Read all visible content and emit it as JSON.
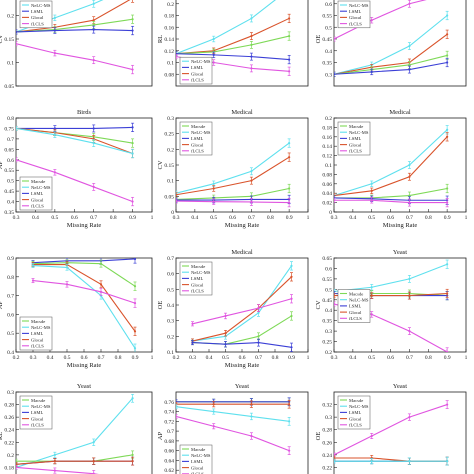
{
  "colors": {
    "Macsde": "#7ed957",
    "NeLC-MS": "#5ee0ee",
    "LSML": "#3b3fd6",
    "Glocal": "#d9532b",
    "fLCLS": "#e055e0"
  },
  "chart_data": [
    {
      "type": "line",
      "title": "",
      "xlabel": "",
      "ylabel": "CV",
      "xlim": [
        0.3,
        1
      ],
      "ylim": [
        0.05,
        0.25
      ],
      "xticks": [],
      "yticks": [
        "0.05",
        "0.1",
        "0.15",
        "0.2",
        "0.25"
      ],
      "x": [
        0.3,
        0.5,
        0.7,
        0.9
      ],
      "series": [
        {
          "key": "NeLC-MS",
          "values": [
            0.165,
            0.195,
            0.225,
            0.262
          ]
        },
        {
          "key": "Glocal",
          "values": [
            0.165,
            0.175,
            0.19,
            0.237
          ]
        },
        {
          "key": "Macsde",
          "values": [
            0.165,
            0.17,
            0.18,
            0.192
          ]
        },
        {
          "key": "LSML",
          "values": [
            0.165,
            0.168,
            0.17,
            0.168
          ]
        },
        {
          "key": "fLCLS",
          "values": [
            0.14,
            0.12,
            0.105,
            0.085
          ]
        }
      ],
      "legend": [
        "NeLC-MS",
        "LSML",
        "Glocal",
        "fLCLS"
      ],
      "legend_pos": "top-left"
    },
    {
      "type": "line",
      "title": "",
      "xlabel": "",
      "ylabel": "RL",
      "xlim": [
        0.3,
        1
      ],
      "ylim": [
        0.06,
        0.22
      ],
      "xticks": [],
      "yticks": [
        "0.08",
        "0.1",
        "0.12",
        "0.14",
        "0.16",
        "0.18",
        "0.2",
        "0.22"
      ],
      "x": [
        0.3,
        0.5,
        0.7,
        0.9
      ],
      "series": [
        {
          "key": "NeLC-MS",
          "values": [
            0.115,
            0.14,
            0.175,
            0.225
          ]
        },
        {
          "key": "Glocal",
          "values": [
            0.115,
            0.12,
            0.145,
            0.175
          ]
        },
        {
          "key": "Macsde",
          "values": [
            0.115,
            0.118,
            0.13,
            0.145
          ]
        },
        {
          "key": "LSML",
          "values": [
            0.115,
            0.113,
            0.11,
            0.105
          ]
        },
        {
          "key": "fLCLS",
          "values": [
            0.11,
            0.1,
            0.09,
            0.085
          ]
        }
      ],
      "legend": [
        "NeLC-MS",
        "LSML",
        "Glocal",
        "fLCLS"
      ],
      "legend_pos": "bottom-left"
    },
    {
      "type": "line",
      "title": "",
      "xlabel": "",
      "ylabel": "OE",
      "xlim": [
        0.3,
        1
      ],
      "ylim": [
        0.25,
        0.65
      ],
      "xticks": [],
      "yticks": [
        "0.3",
        "0.35",
        "0.4",
        "0.45",
        "0.5",
        "0.55",
        "0.6"
      ],
      "x": [
        0.3,
        0.5,
        0.7,
        0.9
      ],
      "series": [
        {
          "key": "fLCLS",
          "values": [
            0.45,
            0.53,
            0.6,
            0.64
          ]
        },
        {
          "key": "NeLC-MS",
          "values": [
            0.3,
            0.34,
            0.42,
            0.55
          ]
        },
        {
          "key": "Glocal",
          "values": [
            0.3,
            0.33,
            0.35,
            0.47
          ]
        },
        {
          "key": "Macsde",
          "values": [
            0.3,
            0.32,
            0.34,
            0.38
          ]
        },
        {
          "key": "LSML",
          "values": [
            0.3,
            0.31,
            0.32,
            0.35
          ]
        }
      ],
      "legend": [
        "NeLC-MS",
        "LSML",
        "Glocal",
        "fLCLS"
      ],
      "legend_pos": "top-left"
    },
    {
      "type": "line",
      "title": "Birds",
      "xlabel": "Missing Rate",
      "ylabel": "AP",
      "xlim": [
        0.3,
        1
      ],
      "ylim": [
        0.35,
        0.8
      ],
      "xticks": [
        "0.3",
        "0.4",
        "0.5",
        "0.6",
        "0.7",
        "0.8",
        "0.9",
        "1"
      ],
      "yticks": [
        "0.35",
        "0.4",
        "0.45",
        "0.5",
        "0.55",
        "0.6",
        "0.65",
        "0.7",
        "0.75",
        "0.8"
      ],
      "x": [
        0.3,
        0.5,
        0.7,
        0.9
      ],
      "series": [
        {
          "key": "LSML",
          "values": [
            0.75,
            0.75,
            0.75,
            0.755
          ]
        },
        {
          "key": "Macsde",
          "values": [
            0.75,
            0.73,
            0.71,
            0.68
          ]
        },
        {
          "key": "Glocal",
          "values": [
            0.75,
            0.73,
            0.7,
            0.63
          ]
        },
        {
          "key": "NeLC-MS",
          "values": [
            0.75,
            0.72,
            0.68,
            0.63
          ]
        },
        {
          "key": "fLCLS",
          "values": [
            0.6,
            0.54,
            0.47,
            0.4
          ]
        }
      ],
      "legend": [
        "Macsde",
        "NeLC-MS",
        "LSML",
        "Glocal",
        "fLCLS"
      ],
      "legend_pos": "bottom-left"
    },
    {
      "type": "line",
      "title": "Medical",
      "xlabel": "Missing Rate",
      "ylabel": "CV",
      "xlim": [
        0.3,
        1
      ],
      "ylim": [
        0,
        0.3
      ],
      "xticks": [
        "0.3",
        "0.4",
        "0.5",
        "0.6",
        "0.7",
        "0.8",
        "0.9",
        "1"
      ],
      "yticks": [
        "0",
        "0.05",
        "0.1",
        "0.15",
        "0.2",
        "0.25",
        "0.3"
      ],
      "x": [
        0.3,
        0.5,
        0.7,
        0.9
      ],
      "series": [
        {
          "key": "NeLC-MS",
          "values": [
            0.06,
            0.09,
            0.13,
            0.22
          ]
        },
        {
          "key": "Glocal",
          "values": [
            0.055,
            0.075,
            0.1,
            0.175
          ]
        },
        {
          "key": "Macsde",
          "values": [
            0.04,
            0.045,
            0.05,
            0.075
          ]
        },
        {
          "key": "LSML",
          "values": [
            0.038,
            0.038,
            0.04,
            0.04
          ]
        },
        {
          "key": "fLCLS",
          "values": [
            0.035,
            0.033,
            0.032,
            0.03
          ]
        }
      ],
      "legend": [
        "Macsde",
        "NeLC-MS",
        "LSML",
        "Glocal",
        "fLCLS"
      ],
      "legend_pos": "top-left"
    },
    {
      "type": "line",
      "title": "Medical",
      "xlabel": "Missing Rate",
      "ylabel": "",
      "xlim": [
        0.3,
        1
      ],
      "ylim": [
        0,
        0.2
      ],
      "xticks": [
        "0.3",
        "0.4",
        "0.5",
        "0.6",
        "0.7",
        "0.8",
        "0.9",
        "1"
      ],
      "yticks": [
        "0",
        "0.02",
        "0.04",
        "0.06",
        "0.08",
        "0.1",
        "0.12",
        "0.14",
        "0.16",
        "0.18",
        "0.2"
      ],
      "x": [
        0.3,
        0.5,
        0.7,
        0.9
      ],
      "series": [
        {
          "key": "NeLC-MS",
          "values": [
            0.035,
            0.06,
            0.1,
            0.175
          ]
        },
        {
          "key": "Glocal",
          "values": [
            0.035,
            0.045,
            0.075,
            0.16
          ]
        },
        {
          "key": "Macsde",
          "values": [
            0.03,
            0.03,
            0.035,
            0.05
          ]
        },
        {
          "key": "LSML",
          "values": [
            0.03,
            0.028,
            0.025,
            0.025
          ]
        },
        {
          "key": "fLCLS",
          "values": [
            0.025,
            0.025,
            0.02,
            0.02
          ]
        }
      ],
      "legend": [
        "Macsde",
        "NeLC-MS",
        "LSML",
        "Glocal",
        "fLCLS"
      ],
      "legend_pos": "top-left"
    },
    {
      "type": "line",
      "title": "",
      "xlabel": "Missing Rate",
      "ylabel": "AP",
      "xlim": [
        0.2,
        1
      ],
      "ylim": [
        0.4,
        0.9
      ],
      "xticks": [
        "0.2",
        "0.3",
        "0.4",
        "0.5",
        "0.6",
        "0.7",
        "0.8",
        "0.9",
        "1"
      ],
      "yticks": [
        "0.4",
        "0.5",
        "0.6",
        "0.7",
        "0.8",
        "0.9"
      ],
      "x": [
        0.3,
        0.5,
        0.7,
        0.9
      ],
      "series": [
        {
          "key": "LSML",
          "values": [
            0.875,
            0.885,
            0.885,
            0.895
          ]
        },
        {
          "key": "Macsde",
          "values": [
            0.87,
            0.875,
            0.87,
            0.75
          ]
        },
        {
          "key": "Glocal",
          "values": [
            0.865,
            0.865,
            0.76,
            0.51
          ]
        },
        {
          "key": "NeLC-MS",
          "values": [
            0.86,
            0.85,
            0.7,
            0.42
          ]
        },
        {
          "key": "fLCLS",
          "values": [
            0.78,
            0.76,
            0.72,
            0.66
          ]
        }
      ],
      "legend": [
        "Macsde",
        "NeLC-MS",
        "LSML",
        "Glocal",
        "fLCLS"
      ],
      "legend_pos": "bottom-left"
    },
    {
      "type": "line",
      "title": "Medical",
      "xlabel": "Missing Rate",
      "ylabel": "OE",
      "xlim": [
        0.2,
        1
      ],
      "ylim": [
        0.1,
        0.7
      ],
      "xticks": [
        "0.2",
        "0.3",
        "0.4",
        "0.5",
        "0.6",
        "0.7",
        "0.8",
        "0.9",
        "1"
      ],
      "yticks": [
        "0.1",
        "0.2",
        "0.3",
        "0.4",
        "0.5",
        "0.6",
        "0.7"
      ],
      "x": [
        0.3,
        0.5,
        0.7,
        0.9
      ],
      "series": [
        {
          "key": "NeLC-MS",
          "values": [
            0.17,
            0.2,
            0.35,
            0.65
          ]
        },
        {
          "key": "Glocal",
          "values": [
            0.17,
            0.22,
            0.38,
            0.58
          ]
        },
        {
          "key": "fLCLS",
          "values": [
            0.28,
            0.33,
            0.38,
            0.44
          ]
        },
        {
          "key": "Macsde",
          "values": [
            0.16,
            0.15,
            0.2,
            0.33
          ]
        },
        {
          "key": "LSML",
          "values": [
            0.16,
            0.15,
            0.16,
            0.13
          ]
        }
      ],
      "legend": [
        "Macsde",
        "NeLC-MS",
        "LSML",
        "Glocal",
        "fLCLS"
      ],
      "legend_pos": "top-left"
    },
    {
      "type": "line",
      "title": "Yeast",
      "xlabel": "",
      "ylabel": "CV",
      "xlim": [
        0.3,
        1
      ],
      "ylim": [
        0.2,
        0.65
      ],
      "xticks": [
        "0.3",
        "0.4",
        "0.5",
        "0.6",
        "0.7",
        "0.8",
        "0.9",
        "1"
      ],
      "yticks": [
        "0.2",
        "0.25",
        "0.3",
        "0.35",
        "0.4",
        "0.45",
        "0.5",
        "0.55",
        "0.6",
        "0.65"
      ],
      "x": [
        0.3,
        0.5,
        0.7,
        0.9
      ],
      "series": [
        {
          "key": "NeLC-MS",
          "values": [
            0.49,
            0.51,
            0.55,
            0.62
          ]
        },
        {
          "key": "Macsde",
          "values": [
            0.48,
            0.48,
            0.48,
            0.47
          ]
        },
        {
          "key": "LSML",
          "values": [
            0.48,
            0.47,
            0.47,
            0.47
          ]
        },
        {
          "key": "Glocal",
          "values": [
            0.47,
            0.47,
            0.47,
            0.48
          ]
        },
        {
          "key": "fLCLS",
          "values": [
            0.43,
            0.38,
            0.3,
            0.2
          ]
        }
      ],
      "legend": [
        "Macsde",
        "NeLC-MS",
        "LSML",
        "Glocal",
        "fLCLS"
      ],
      "legend_pos": "middle-left"
    },
    {
      "type": "line",
      "title": "Yeast",
      "xlabel": "",
      "ylabel": "RL",
      "xlim": [
        0.3,
        1
      ],
      "ylim": [
        0.16,
        0.3
      ],
      "xticks": [],
      "yticks": [
        "0.16",
        "0.18",
        "0.2",
        "0.22",
        "0.24",
        "0.26",
        "0.28",
        "0.3"
      ],
      "x": [
        0.3,
        0.5,
        0.7,
        0.9
      ],
      "series": [
        {
          "key": "NeLC-MS",
          "values": [
            0.18,
            0.2,
            0.22,
            0.29
          ]
        },
        {
          "key": "Macsde",
          "values": [
            0.19,
            0.19,
            0.19,
            0.2
          ]
        },
        {
          "key": "LSML",
          "values": [
            0.185,
            0.19,
            0.19,
            0.19
          ]
        },
        {
          "key": "Glocal",
          "values": [
            0.185,
            0.19,
            0.19,
            0.19
          ]
        },
        {
          "key": "fLCLS",
          "values": [
            0.18,
            0.175,
            0.17,
            0.16
          ]
        }
      ],
      "legend": [
        "Macsde",
        "NeLC-MS",
        "LSML",
        "Glocal",
        "fLCLS"
      ],
      "legend_pos": "top-left"
    },
    {
      "type": "line",
      "title": "Yeast",
      "xlabel": "",
      "ylabel": "AP",
      "xlim": [
        0.3,
        1
      ],
      "ylim": [
        0.6,
        0.78
      ],
      "xticks": [],
      "yticks": [
        "0.6",
        "0.62",
        "0.64",
        "0.66",
        "0.68",
        "0.7",
        "0.72",
        "0.74",
        "0.76"
      ],
      "x": [
        0.3,
        0.5,
        0.7,
        0.9
      ],
      "series": [
        {
          "key": "Macsde",
          "values": [
            0.76,
            0.76,
            0.76,
            0.76
          ]
        },
        {
          "key": "LSML",
          "values": [
            0.76,
            0.76,
            0.76,
            0.76
          ]
        },
        {
          "key": "Glocal",
          "values": [
            0.755,
            0.755,
            0.755,
            0.755
          ]
        },
        {
          "key": "NeLC-MS",
          "values": [
            0.75,
            0.74,
            0.73,
            0.72
          ]
        },
        {
          "key": "fLCLS",
          "values": [
            0.73,
            0.71,
            0.69,
            0.66
          ]
        }
      ],
      "legend": [
        "Macsde",
        "NeLC-MS",
        "LSML",
        "Glocal",
        "fLCLS"
      ],
      "legend_pos": "bottom-left"
    },
    {
      "type": "line",
      "title": "Yeast",
      "xlabel": "",
      "ylabel": "OE",
      "xlim": [
        0.3,
        1
      ],
      "ylim": [
        0.2,
        0.34
      ],
      "xticks": [],
      "yticks": [
        "0.22",
        "0.24",
        "0.26",
        "0.28",
        "0.3",
        "0.32"
      ],
      "x": [
        0.3,
        0.5,
        0.7,
        0.9
      ],
      "series": [
        {
          "key": "fLCLS",
          "values": [
            0.24,
            0.27,
            0.3,
            0.32
          ]
        },
        {
          "key": "Macsde",
          "values": [
            0.23,
            0.23,
            0.23,
            0.23
          ]
        },
        {
          "key": "LSML",
          "values": [
            0.23,
            0.23,
            0.23,
            0.23
          ]
        },
        {
          "key": "Glocal",
          "values": [
            0.235,
            0.235,
            0.23,
            0.23
          ]
        },
        {
          "key": "NeLC-MS",
          "values": [
            0.23,
            0.23,
            0.23,
            0.23
          ]
        }
      ],
      "legend": [
        "Macsde",
        "NeLC-MS",
        "LSML",
        "Glocal",
        "fLCLS"
      ],
      "legend_pos": "top-left"
    }
  ]
}
